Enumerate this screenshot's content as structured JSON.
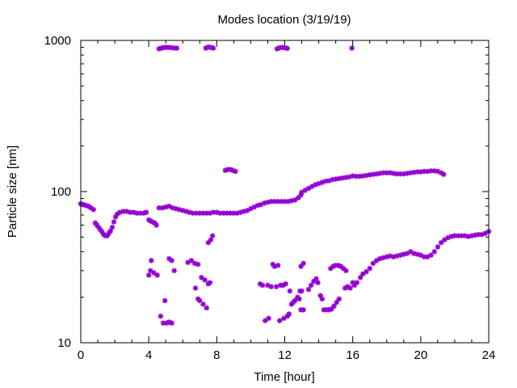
{
  "chart_data": {
    "type": "scatter",
    "title": "Modes location (3/19/19)",
    "xlabel": "Time [hour]",
    "ylabel": "Particle size [nm]",
    "xlim": [
      0,
      24
    ],
    "ylim": [
      10,
      1000
    ],
    "yscale": "log",
    "grid": false,
    "legend": "none",
    "marker_color": "#9400d3",
    "xticks": [
      0,
      4,
      8,
      12,
      16,
      20,
      24
    ],
    "xtick_labels": [
      "0",
      "4",
      "8",
      "12",
      "16",
      "20",
      "24"
    ],
    "yticks": [
      10,
      100,
      1000
    ],
    "ytick_labels": [
      "10",
      "100",
      "1000"
    ],
    "series": [
      {
        "points": [
          [
            0.0,
            83
          ],
          [
            0.15,
            82
          ],
          [
            0.3,
            81
          ],
          [
            0.45,
            80
          ],
          [
            0.6,
            78
          ],
          [
            0.75,
            76
          ],
          [
            0.85,
            62
          ],
          [
            0.95,
            60
          ],
          [
            1.05,
            58
          ],
          [
            1.15,
            56
          ],
          [
            1.25,
            54
          ],
          [
            1.35,
            52
          ],
          [
            1.45,
            51
          ],
          [
            1.55,
            51
          ],
          [
            1.65,
            53
          ],
          [
            1.75,
            55
          ],
          [
            1.85,
            58
          ],
          [
            1.95,
            63
          ],
          [
            2.05,
            68
          ],
          [
            2.15,
            71
          ],
          [
            2.3,
            73
          ],
          [
            2.5,
            74
          ],
          [
            2.7,
            74
          ],
          [
            2.9,
            73
          ],
          [
            3.1,
            73
          ],
          [
            3.3,
            72
          ],
          [
            3.5,
            72
          ],
          [
            3.7,
            72
          ],
          [
            3.85,
            73
          ],
          [
            4.0,
            65
          ],
          [
            4.1,
            64
          ],
          [
            4.2,
            63
          ],
          [
            4.35,
            62
          ],
          [
            4.45,
            60
          ],
          [
            4.6,
            78
          ],
          [
            4.8,
            78
          ],
          [
            5.0,
            79
          ],
          [
            5.2,
            80
          ],
          [
            5.4,
            78
          ],
          [
            5.6,
            77
          ],
          [
            5.8,
            76
          ],
          [
            6.0,
            75
          ],
          [
            6.2,
            74
          ],
          [
            6.4,
            73
          ],
          [
            6.6,
            72
          ],
          [
            6.8,
            72
          ],
          [
            7.0,
            72
          ],
          [
            7.2,
            72
          ],
          [
            7.4,
            72
          ],
          [
            7.6,
            72
          ],
          [
            7.8,
            73
          ],
          [
            8.0,
            73
          ],
          [
            8.2,
            72
          ],
          [
            8.4,
            72
          ],
          [
            8.6,
            72
          ],
          [
            8.8,
            72
          ],
          [
            9.0,
            72
          ],
          [
            9.2,
            72
          ],
          [
            9.4,
            73
          ],
          [
            9.6,
            74
          ],
          [
            9.8,
            75
          ],
          [
            10.0,
            77
          ],
          [
            10.2,
            79
          ],
          [
            10.4,
            81
          ],
          [
            10.6,
            82
          ],
          [
            10.8,
            84
          ],
          [
            11.0,
            85
          ],
          [
            11.2,
            86
          ],
          [
            11.4,
            86
          ],
          [
            11.6,
            86
          ],
          [
            11.8,
            86
          ],
          [
            12.0,
            86
          ],
          [
            12.2,
            86
          ],
          [
            12.4,
            87
          ],
          [
            12.6,
            88
          ],
          [
            12.8,
            91
          ],
          [
            12.95,
            95
          ],
          [
            13.0,
            99
          ],
          [
            13.2,
            102
          ],
          [
            13.4,
            105
          ],
          [
            13.6,
            108
          ],
          [
            13.8,
            111
          ],
          [
            14.0,
            113
          ],
          [
            14.2,
            115
          ],
          [
            14.4,
            117
          ],
          [
            14.6,
            118
          ],
          [
            14.8,
            120
          ],
          [
            15.0,
            121
          ],
          [
            15.2,
            122
          ],
          [
            15.4,
            123
          ],
          [
            15.6,
            124
          ],
          [
            15.8,
            125
          ],
          [
            16.0,
            127
          ],
          [
            16.2,
            126
          ],
          [
            16.4,
            126
          ],
          [
            16.6,
            127
          ],
          [
            16.8,
            128
          ],
          [
            17.0,
            129
          ],
          [
            17.2,
            130
          ],
          [
            17.4,
            131
          ],
          [
            17.6,
            132
          ],
          [
            17.8,
            133
          ],
          [
            18.0,
            133
          ],
          [
            18.2,
            133
          ],
          [
            18.4,
            132
          ],
          [
            18.6,
            131
          ],
          [
            18.8,
            131
          ],
          [
            19.0,
            131
          ],
          [
            19.2,
            132
          ],
          [
            19.4,
            133
          ],
          [
            19.6,
            134
          ],
          [
            19.8,
            135
          ],
          [
            20.0,
            135
          ],
          [
            20.2,
            136
          ],
          [
            20.4,
            136
          ],
          [
            20.6,
            137
          ],
          [
            20.8,
            137
          ],
          [
            21.0,
            136
          ],
          [
            21.2,
            133
          ],
          [
            21.35,
            130
          ],
          [
            4.6,
            880
          ],
          [
            4.75,
            890
          ],
          [
            4.9,
            900
          ],
          [
            5.05,
            900
          ],
          [
            5.2,
            900
          ],
          [
            5.35,
            895
          ],
          [
            5.5,
            890
          ],
          [
            5.65,
            890
          ],
          [
            7.35,
            890
          ],
          [
            7.5,
            905
          ],
          [
            7.65,
            900
          ],
          [
            7.8,
            890
          ],
          [
            11.55,
            880
          ],
          [
            11.7,
            895
          ],
          [
            11.85,
            900
          ],
          [
            12.0,
            895
          ],
          [
            12.15,
            885
          ],
          [
            15.95,
            890
          ],
          [
            8.5,
            138
          ],
          [
            8.65,
            140
          ],
          [
            8.8,
            140
          ],
          [
            8.95,
            138
          ],
          [
            9.1,
            136
          ]
        ]
      },
      {
        "points": [
          [
            4.0,
            28
          ],
          [
            4.1,
            30
          ],
          [
            4.15,
            35
          ],
          [
            4.3,
            29
          ],
          [
            4.5,
            28
          ],
          [
            4.7,
            15
          ],
          [
            4.85,
            13.5
          ],
          [
            4.95,
            19
          ],
          [
            5.05,
            13.5
          ],
          [
            5.2,
            13.7
          ],
          [
            5.35,
            13.5
          ],
          [
            5.2,
            36
          ],
          [
            5.35,
            35
          ],
          [
            5.5,
            30
          ],
          [
            6.3,
            34
          ],
          [
            6.5,
            35
          ],
          [
            6.7,
            33.5
          ],
          [
            6.9,
            33
          ],
          [
            6.75,
            23
          ],
          [
            6.9,
            19.5
          ],
          [
            7.0,
            19
          ],
          [
            7.1,
            27
          ],
          [
            7.2,
            18
          ],
          [
            7.3,
            26
          ],
          [
            7.4,
            17
          ],
          [
            7.5,
            24.5
          ],
          [
            7.6,
            25
          ],
          [
            7.5,
            46
          ],
          [
            7.65,
            48
          ],
          [
            7.75,
            51
          ],
          [
            10.55,
            24.5
          ],
          [
            10.7,
            24
          ],
          [
            10.85,
            14
          ],
          [
            11.0,
            24
          ],
          [
            11.05,
            14.5
          ],
          [
            11.2,
            23.5
          ],
          [
            11.3,
            33
          ],
          [
            11.4,
            32
          ],
          [
            11.5,
            23.5
          ],
          [
            11.6,
            32.5
          ],
          [
            11.7,
            14
          ],
          [
            11.75,
            24
          ],
          [
            11.9,
            24
          ],
          [
            11.95,
            14.5
          ],
          [
            12.05,
            24.5
          ],
          [
            12.15,
            15
          ],
          [
            12.25,
            15.5
          ],
          [
            12.3,
            22
          ],
          [
            12.4,
            18
          ],
          [
            12.5,
            18.5
          ],
          [
            12.6,
            19
          ],
          [
            12.75,
            20
          ],
          [
            12.85,
            19.5
          ],
          [
            12.9,
            22
          ],
          [
            13.0,
            22
          ],
          [
            12.95,
            32
          ],
          [
            13.1,
            33.5
          ],
          [
            12.95,
            16.5
          ],
          [
            13.1,
            16.5
          ],
          [
            13.4,
            22.5
          ],
          [
            13.55,
            24
          ],
          [
            13.7,
            25.5
          ],
          [
            13.85,
            26.5
          ],
          [
            13.95,
            25
          ],
          [
            14.1,
            20.5
          ],
          [
            14.2,
            19.5
          ],
          [
            14.3,
            16.5
          ],
          [
            14.45,
            16.5
          ],
          [
            14.6,
            16.5
          ],
          [
            14.75,
            16.7
          ],
          [
            14.9,
            17.5
          ],
          [
            15.05,
            18.5
          ],
          [
            15.2,
            19.5
          ],
          [
            14.7,
            31
          ],
          [
            14.85,
            32
          ],
          [
            15.0,
            32.5
          ],
          [
            15.15,
            32.5
          ],
          [
            15.3,
            32
          ],
          [
            15.45,
            31
          ],
          [
            15.6,
            30
          ],
          [
            15.55,
            23
          ],
          [
            15.7,
            23.5
          ],
          [
            15.85,
            23
          ],
          [
            16.0,
            25
          ],
          [
            16.1,
            24
          ],
          [
            16.25,
            25
          ],
          [
            16.45,
            27
          ],
          [
            16.6,
            28.5
          ],
          [
            16.8,
            29.5
          ],
          [
            17.0,
            31
          ],
          [
            17.2,
            33.5
          ],
          [
            17.4,
            35
          ],
          [
            17.6,
            36
          ],
          [
            17.8,
            36.5
          ],
          [
            18.0,
            37
          ],
          [
            18.2,
            37.5
          ],
          [
            18.4,
            37
          ],
          [
            18.6,
            37.5
          ],
          [
            18.8,
            38
          ],
          [
            19.0,
            38.5
          ],
          [
            19.2,
            39
          ],
          [
            19.4,
            40
          ],
          [
            19.6,
            39
          ],
          [
            19.8,
            38.5
          ],
          [
            20.0,
            38
          ],
          [
            20.2,
            37
          ],
          [
            20.4,
            37
          ],
          [
            20.6,
            38
          ],
          [
            20.8,
            40
          ],
          [
            21.0,
            43
          ],
          [
            21.2,
            46
          ],
          [
            21.4,
            48
          ],
          [
            21.6,
            49.5
          ],
          [
            21.8,
            50.5
          ],
          [
            22.0,
            51
          ],
          [
            22.2,
            51
          ],
          [
            22.4,
            51
          ],
          [
            22.6,
            51
          ],
          [
            22.8,
            50.5
          ],
          [
            23.0,
            51
          ],
          [
            23.2,
            51.5
          ],
          [
            23.4,
            52
          ],
          [
            23.6,
            52
          ],
          [
            23.8,
            53
          ],
          [
            24.0,
            54.5
          ]
        ]
      }
    ]
  }
}
